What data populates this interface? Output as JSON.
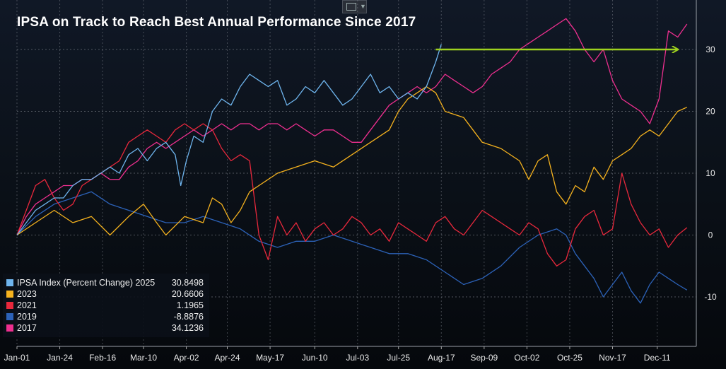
{
  "chart_data": {
    "type": "line",
    "title": "IPSA on Track to Reach Best Annual Performance Since 2017",
    "xlabel": "",
    "ylabel": "",
    "ylim": [
      -18,
      38
    ],
    "yticks": [
      30,
      20,
      10,
      0,
      -10
    ],
    "ytick_labels": [
      "30",
      "20",
      "10",
      "0",
      "-10"
    ],
    "x_tick_labels": [
      "Jan-01",
      "Jan-24",
      "Feb-16",
      "Mar-10",
      "Apr-02",
      "Apr-24",
      "May-17",
      "Jun-10",
      "Jul-03",
      "Jul-25",
      "Aug-17",
      "Sep-09",
      "Oct-02",
      "Oct-25",
      "Nov-17",
      "Dec-11"
    ],
    "x_tick_days": [
      0,
      23,
      46,
      68,
      91,
      113,
      136,
      160,
      183,
      205,
      228,
      251,
      274,
      297,
      320,
      344
    ],
    "x_range": [
      0,
      365
    ],
    "grid": true,
    "legend_position": "bottom-left",
    "series": [
      {
        "name": "IPSA Index (Percent Change) 2025",
        "label": "IPSA Index (Percent Change) 2025",
        "last": "30.8498",
        "color": "#6fb5ee",
        "x": [
          0,
          5,
          10,
          15,
          20,
          25,
          30,
          35,
          40,
          45,
          50,
          55,
          60,
          65,
          70,
          75,
          80,
          85,
          88,
          91,
          95,
          100,
          105,
          110,
          115,
          120,
          125,
          130,
          135,
          140,
          145,
          150,
          155,
          160,
          165,
          170,
          175,
          180,
          185,
          190,
          195,
          200,
          205,
          210,
          215,
          220,
          225,
          228
        ],
        "y": [
          0,
          2,
          4,
          5,
          6,
          6,
          8,
          9,
          9,
          10,
          11,
          10,
          13,
          14,
          12,
          14,
          15,
          13,
          8,
          12,
          16,
          15,
          20,
          22,
          21,
          24,
          26,
          25,
          24,
          25,
          21,
          22,
          24,
          23,
          25,
          23,
          21,
          22,
          24,
          26,
          23,
          24,
          22,
          23,
          22,
          24,
          28,
          30.85
        ]
      },
      {
        "name": "2023",
        "label": "2023",
        "last": "20.6606",
        "color": "#f5b21e",
        "x": [
          0,
          10,
          20,
          30,
          40,
          50,
          60,
          68,
          75,
          80,
          90,
          100,
          105,
          110,
          115,
          120,
          125,
          130,
          140,
          150,
          160,
          170,
          180,
          190,
          200,
          205,
          210,
          215,
          220,
          225,
          230,
          240,
          250,
          260,
          270,
          275,
          280,
          285,
          290,
          295,
          300,
          305,
          310,
          315,
          320,
          325,
          330,
          335,
          340,
          345,
          350,
          355,
          360
        ],
        "y": [
          0,
          2,
          4,
          2,
          3,
          0,
          3,
          5,
          2,
          0,
          3,
          2,
          6,
          5,
          2,
          4,
          7,
          8,
          10,
          11,
          12,
          11,
          13,
          15,
          17,
          20,
          22,
          23,
          24,
          23,
          20,
          19,
          15,
          14,
          12,
          9,
          12,
          13,
          7,
          5,
          8,
          7,
          11,
          9,
          12,
          13,
          14,
          16,
          17,
          16,
          18,
          20,
          20.66
        ]
      },
      {
        "name": "2021",
        "label": "2021",
        "last": "1.1965",
        "color": "#e8283c",
        "x": [
          0,
          5,
          10,
          15,
          20,
          25,
          30,
          35,
          40,
          45,
          50,
          55,
          60,
          65,
          70,
          75,
          80,
          85,
          90,
          95,
          100,
          105,
          110,
          115,
          120,
          125,
          130,
          135,
          140,
          145,
          150,
          155,
          160,
          165,
          170,
          175,
          180,
          185,
          190,
          195,
          200,
          205,
          210,
          215,
          220,
          225,
          230,
          235,
          240,
          245,
          250,
          255,
          260,
          265,
          270,
          275,
          280,
          285,
          290,
          295,
          300,
          305,
          310,
          315,
          320,
          325,
          330,
          335,
          340,
          345,
          350,
          355,
          360
        ],
        "y": [
          0,
          4,
          8,
          9,
          6,
          4,
          5,
          8,
          9,
          10,
          11,
          12,
          15,
          16,
          17,
          16,
          15,
          17,
          18,
          17,
          18,
          17,
          14,
          12,
          13,
          12,
          0,
          -4,
          3,
          0,
          2,
          -1,
          1,
          2,
          0,
          1,
          3,
          2,
          0,
          1,
          -1,
          2,
          1,
          0,
          -1,
          2,
          3,
          1,
          0,
          2,
          4,
          3,
          2,
          1,
          0,
          2,
          1,
          -3,
          -5,
          -4,
          1,
          3,
          4,
          0,
          1,
          10,
          5,
          2,
          0,
          1,
          -2,
          0,
          1.2
        ]
      },
      {
        "name": "2019",
        "label": "2019",
        "last": "-8.8876",
        "color": "#2c62b8",
        "x": [
          0,
          10,
          20,
          30,
          40,
          50,
          60,
          70,
          80,
          90,
          100,
          110,
          120,
          130,
          140,
          150,
          160,
          170,
          180,
          190,
          200,
          210,
          220,
          230,
          240,
          250,
          260,
          270,
          280,
          290,
          295,
          300,
          305,
          310,
          315,
          320,
          325,
          330,
          335,
          340,
          345,
          350,
          355,
          360
        ],
        "y": [
          0,
          3,
          5,
          6,
          7,
          5,
          4,
          3,
          2,
          2,
          3,
          2,
          1,
          -1,
          -2,
          -1,
          -1,
          0,
          -1,
          -2,
          -3,
          -3,
          -4,
          -6,
          -8,
          -7,
          -5,
          -2,
          0,
          1,
          0,
          -3,
          -5,
          -7,
          -10,
          -8,
          -6,
          -9,
          -11,
          -8,
          -6,
          -7,
          -8,
          -8.89
        ]
      },
      {
        "name": "2017",
        "label": "2017",
        "last": "34.1236",
        "color": "#ee2f8f",
        "x": [
          0,
          5,
          10,
          15,
          20,
          25,
          30,
          35,
          40,
          45,
          50,
          55,
          60,
          65,
          70,
          75,
          80,
          85,
          90,
          95,
          100,
          105,
          110,
          115,
          120,
          125,
          130,
          135,
          140,
          145,
          150,
          155,
          160,
          165,
          170,
          175,
          180,
          185,
          190,
          195,
          200,
          205,
          210,
          215,
          220,
          225,
          230,
          235,
          240,
          245,
          250,
          255,
          260,
          265,
          270,
          275,
          280,
          285,
          290,
          295,
          300,
          305,
          310,
          315,
          320,
          325,
          330,
          335,
          340,
          345,
          350,
          355,
          360
        ],
        "y": [
          0,
          3,
          5,
          6,
          7,
          8,
          8,
          9,
          9,
          10,
          9,
          9,
          11,
          12,
          14,
          15,
          14,
          15,
          16,
          17,
          16,
          17,
          18,
          17,
          18,
          18,
          17,
          18,
          18,
          17,
          18,
          17,
          16,
          17,
          17,
          16,
          15,
          15,
          17,
          19,
          21,
          22,
          23,
          24,
          23,
          24,
          26,
          25,
          24,
          23,
          24,
          26,
          27,
          28,
          30,
          31,
          32,
          33,
          34,
          35,
          33,
          30,
          28,
          30,
          25,
          22,
          21,
          20,
          18,
          22,
          33,
          32,
          34.12
        ]
      }
    ],
    "annotation": {
      "type": "arrow",
      "color": "#9ed21e",
      "from": {
        "x": 225,
        "y": 30
      },
      "to": {
        "x": 355,
        "y": 30
      }
    }
  }
}
